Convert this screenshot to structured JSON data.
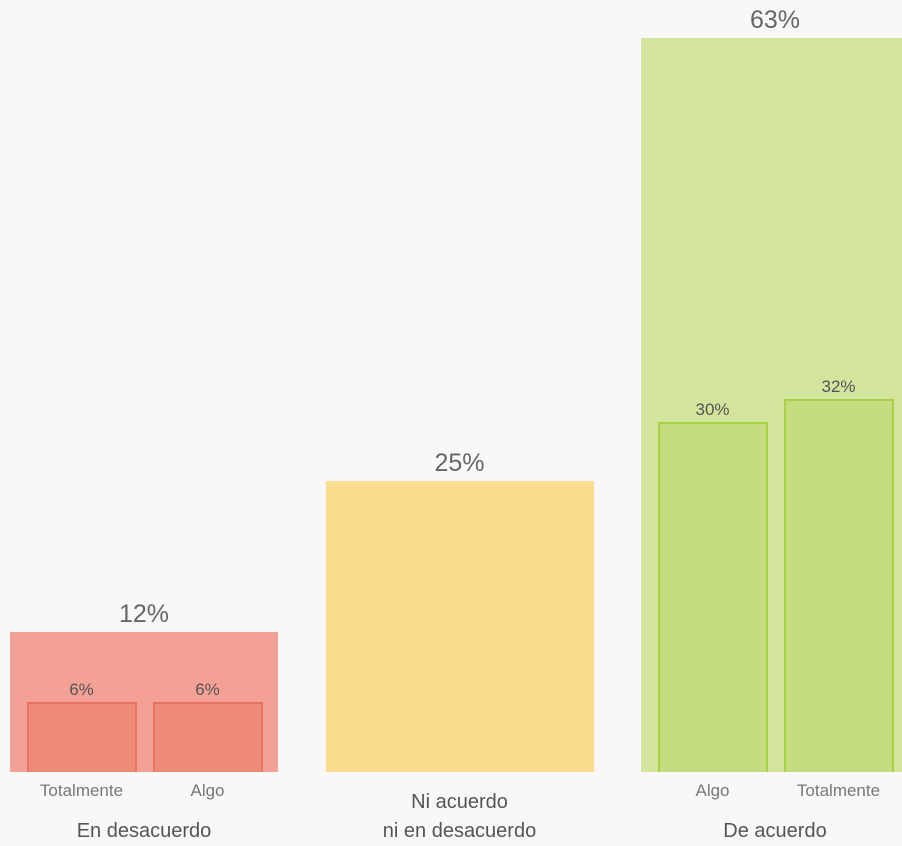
{
  "chart_data": {
    "type": "bar",
    "categories": [
      "En desacuerdo",
      "Ni acuerdo\nni en desacuerdo",
      "De acuerdo"
    ],
    "values": [
      12,
      25,
      63
    ],
    "value_labels": [
      "12%",
      "25%",
      "63%"
    ],
    "colors": [
      "#f3a095",
      "#fbdc8e",
      "#d3e49d"
    ],
    "sub_bars": [
      {
        "categories": [
          "Totalmente",
          "Algo"
        ],
        "values": [
          6,
          6
        ],
        "value_labels": [
          "6%",
          "6%"
        ],
        "color": "#ef8a78",
        "border": "#e9735f"
      },
      null,
      {
        "categories": [
          "Algo",
          "Totalmente"
        ],
        "values": [
          30,
          32
        ],
        "value_labels": [
          "30%",
          "32%"
        ],
        "color": "#c5dd80",
        "border": "#a9d046"
      }
    ]
  }
}
